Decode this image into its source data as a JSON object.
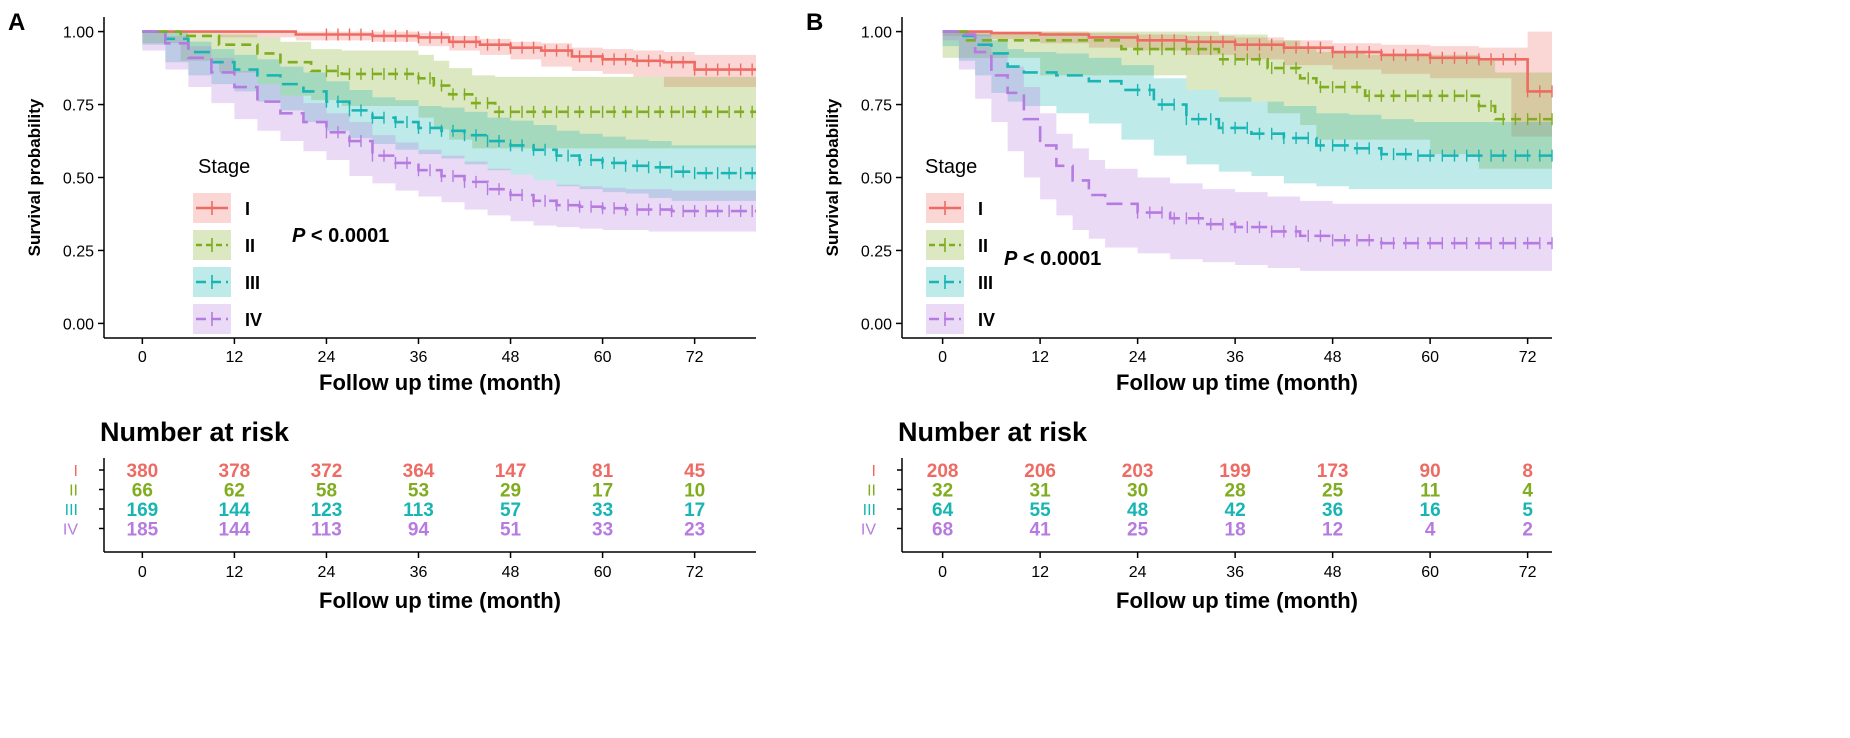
{
  "legend_title": "Stage",
  "colors": {
    "I": "#ee6b63",
    "II": "#7fad1f",
    "III": "#18b5b3",
    "IV": "#b67be0"
  },
  "chart_data": [
    {
      "panel_label": "A",
      "type": "line",
      "subtype": "kaplan-meier",
      "xlabel": "Follow up time (month)",
      "ylabel": "Survival probability",
      "xlim": [
        -5,
        80
      ],
      "ylim": [
        -0.05,
        1.05
      ],
      "xticks": [
        0,
        12,
        24,
        36,
        48,
        60,
        72
      ],
      "yticks": [
        "0.00",
        "0.25",
        "0.50",
        "0.75",
        "1.00"
      ],
      "pvalue_label": "P",
      "pvalue_text": " < 0.0001",
      "series": [
        {
          "name": "I",
          "style": "solid",
          "x": [
            0,
            10,
            20,
            30,
            36,
            40,
            44,
            48,
            52,
            56,
            60,
            64,
            68,
            72,
            76,
            80
          ],
          "y": [
            1.0,
            1.0,
            0.99,
            0.985,
            0.98,
            0.965,
            0.955,
            0.945,
            0.935,
            0.915,
            0.905,
            0.9,
            0.895,
            0.87,
            0.87,
            0.87
          ],
          "lower": [
            1.0,
            1.0,
            0.98,
            0.97,
            0.965,
            0.95,
            0.935,
            0.92,
            0.905,
            0.88,
            0.865,
            0.855,
            0.845,
            0.81,
            0.81,
            0.81
          ],
          "upper": [
            1.0,
            1.0,
            1.0,
            1.0,
            0.995,
            0.985,
            0.975,
            0.965,
            0.96,
            0.945,
            0.94,
            0.935,
            0.93,
            0.92,
            0.92,
            0.92
          ]
        },
        {
          "name": "II",
          "style": "dashed",
          "x": [
            0,
            5,
            10,
            15,
            18,
            22,
            26,
            36,
            38,
            40,
            43,
            46,
            80
          ],
          "y": [
            1.0,
            0.985,
            0.955,
            0.925,
            0.895,
            0.865,
            0.855,
            0.84,
            0.815,
            0.785,
            0.755,
            0.725,
            0.725
          ],
          "lower": [
            1.0,
            0.96,
            0.9,
            0.86,
            0.82,
            0.78,
            0.765,
            0.745,
            0.705,
            0.665,
            0.63,
            0.6,
            0.6
          ],
          "upper": [
            1.0,
            1.0,
            0.99,
            0.98,
            0.965,
            0.94,
            0.935,
            0.92,
            0.9,
            0.875,
            0.85,
            0.845,
            0.845
          ]
        },
        {
          "name": "III",
          "style": "longdash",
          "x": [
            0,
            3,
            6,
            9,
            12,
            15,
            18,
            21,
            24,
            27,
            30,
            33,
            36,
            39,
            42,
            45,
            48,
            51,
            54,
            57,
            60,
            63,
            66,
            69,
            72,
            76,
            80
          ],
          "y": [
            1.0,
            0.975,
            0.93,
            0.895,
            0.87,
            0.85,
            0.82,
            0.795,
            0.76,
            0.73,
            0.705,
            0.69,
            0.67,
            0.66,
            0.645,
            0.625,
            0.61,
            0.595,
            0.575,
            0.56,
            0.55,
            0.54,
            0.535,
            0.52,
            0.515,
            0.515,
            0.515
          ],
          "lower": [
            1.0,
            0.955,
            0.895,
            0.85,
            0.82,
            0.795,
            0.76,
            0.73,
            0.69,
            0.66,
            0.635,
            0.615,
            0.595,
            0.58,
            0.565,
            0.545,
            0.525,
            0.51,
            0.49,
            0.47,
            0.46,
            0.45,
            0.445,
            0.43,
            0.42,
            0.42,
            0.42
          ],
          "upper": [
            1.0,
            0.995,
            0.965,
            0.94,
            0.92,
            0.905,
            0.88,
            0.86,
            0.83,
            0.8,
            0.775,
            0.765,
            0.745,
            0.74,
            0.725,
            0.705,
            0.695,
            0.68,
            0.66,
            0.65,
            0.64,
            0.63,
            0.625,
            0.61,
            0.61,
            0.61,
            0.61
          ]
        },
        {
          "name": "IV",
          "style": "longdash",
          "x": [
            0,
            3,
            6,
            9,
            12,
            15,
            18,
            21,
            24,
            27,
            30,
            33,
            36,
            39,
            42,
            45,
            48,
            51,
            54,
            57,
            60,
            63,
            66,
            69,
            72,
            76,
            80
          ],
          "y": [
            1.0,
            0.96,
            0.91,
            0.86,
            0.81,
            0.76,
            0.72,
            0.69,
            0.655,
            0.625,
            0.575,
            0.55,
            0.525,
            0.505,
            0.485,
            0.46,
            0.44,
            0.42,
            0.405,
            0.4,
            0.395,
            0.39,
            0.39,
            0.385,
            0.385,
            0.385,
            0.385
          ],
          "lower": [
            1.0,
            0.935,
            0.87,
            0.81,
            0.755,
            0.7,
            0.66,
            0.625,
            0.59,
            0.56,
            0.505,
            0.48,
            0.455,
            0.435,
            0.415,
            0.39,
            0.37,
            0.35,
            0.335,
            0.33,
            0.325,
            0.32,
            0.32,
            0.315,
            0.315,
            0.315,
            0.315
          ],
          "upper": [
            1.0,
            0.985,
            0.95,
            0.91,
            0.865,
            0.82,
            0.78,
            0.755,
            0.72,
            0.69,
            0.645,
            0.62,
            0.595,
            0.575,
            0.555,
            0.53,
            0.51,
            0.49,
            0.475,
            0.47,
            0.465,
            0.46,
            0.46,
            0.455,
            0.455,
            0.455,
            0.455
          ]
        }
      ],
      "risk_table": {
        "title": "Number at risk",
        "xlabel": "Follow up time (month)",
        "times": [
          0,
          12,
          24,
          36,
          48,
          60,
          72
        ],
        "rows": [
          {
            "name": "I",
            "values": [
              380,
              378,
              372,
              364,
              147,
              81,
              45
            ]
          },
          {
            "name": "II",
            "values": [
              66,
              62,
              58,
              53,
              29,
              17,
              10
            ]
          },
          {
            "name": "III",
            "values": [
              169,
              144,
              123,
              113,
              57,
              33,
              17
            ]
          },
          {
            "name": "IV",
            "values": [
              185,
              144,
              113,
              94,
              51,
              33,
              23
            ]
          }
        ]
      }
    },
    {
      "panel_label": "B",
      "type": "line",
      "subtype": "kaplan-meier",
      "xlabel": "Follow up time (month)",
      "ylabel": "Survival probability",
      "xlim": [
        -5,
        75
      ],
      "ylim": [
        -0.05,
        1.05
      ],
      "xticks": [
        0,
        12,
        24,
        36,
        48,
        60,
        72
      ],
      "yticks": [
        "0.00",
        "0.25",
        "0.50",
        "0.75",
        "1.00"
      ],
      "pvalue_label": "P",
      "pvalue_text": " < 0.0001",
      "series": [
        {
          "name": "I",
          "style": "solid",
          "x": [
            0,
            6,
            12,
            18,
            24,
            30,
            36,
            42,
            48,
            54,
            60,
            66,
            70,
            72,
            75
          ],
          "y": [
            1.0,
            0.995,
            0.99,
            0.98,
            0.97,
            0.965,
            0.955,
            0.945,
            0.93,
            0.92,
            0.91,
            0.905,
            0.905,
            0.795,
            0.795
          ],
          "lower": [
            1.0,
            0.985,
            0.975,
            0.96,
            0.945,
            0.935,
            0.92,
            0.905,
            0.885,
            0.87,
            0.855,
            0.84,
            0.84,
            0.64,
            0.64
          ],
          "upper": [
            1.0,
            1.0,
            1.0,
            0.995,
            0.99,
            0.985,
            0.98,
            0.97,
            0.96,
            0.955,
            0.95,
            0.945,
            0.945,
            1.0,
            1.0
          ]
        },
        {
          "name": "II",
          "style": "dashed",
          "x": [
            0,
            3,
            12,
            22,
            30,
            34,
            40,
            44,
            46,
            52,
            60,
            66,
            68,
            75
          ],
          "y": [
            1.0,
            0.97,
            0.97,
            0.94,
            0.94,
            0.905,
            0.875,
            0.84,
            0.81,
            0.78,
            0.78,
            0.745,
            0.7,
            0.7
          ],
          "lower": [
            1.0,
            0.91,
            0.91,
            0.85,
            0.85,
            0.8,
            0.76,
            0.72,
            0.68,
            0.63,
            0.63,
            0.58,
            0.53,
            0.53
          ],
          "upper": [
            1.0,
            1.0,
            1.0,
            1.0,
            1.0,
            0.99,
            0.97,
            0.95,
            0.93,
            0.92,
            0.92,
            0.9,
            0.86,
            0.86
          ]
        },
        {
          "name": "III",
          "style": "longdash",
          "x": [
            0,
            2,
            4,
            6,
            8,
            10,
            14,
            18,
            22,
            26,
            30,
            34,
            38,
            42,
            46,
            50,
            54,
            58,
            75
          ],
          "y": [
            1.0,
            0.985,
            0.955,
            0.925,
            0.88,
            0.86,
            0.85,
            0.83,
            0.8,
            0.75,
            0.7,
            0.67,
            0.65,
            0.635,
            0.61,
            0.6,
            0.58,
            0.575,
            0.575
          ],
          "lower": [
            1.0,
            0.95,
            0.9,
            0.85,
            0.79,
            0.76,
            0.745,
            0.72,
            0.685,
            0.63,
            0.575,
            0.545,
            0.52,
            0.505,
            0.48,
            0.47,
            0.46,
            0.46,
            0.46
          ],
          "upper": [
            1.0,
            1.0,
            0.99,
            0.97,
            0.94,
            0.93,
            0.925,
            0.91,
            0.885,
            0.84,
            0.8,
            0.775,
            0.76,
            0.745,
            0.72,
            0.715,
            0.7,
            0.69,
            0.69
          ]
        },
        {
          "name": "IV",
          "style": "longdash",
          "x": [
            0,
            2,
            4,
            6,
            8,
            10,
            12,
            14,
            16,
            18,
            20,
            24,
            28,
            32,
            36,
            40,
            44,
            48,
            54,
            60,
            66,
            75
          ],
          "y": [
            1.0,
            0.99,
            0.93,
            0.85,
            0.79,
            0.7,
            0.61,
            0.54,
            0.49,
            0.44,
            0.41,
            0.38,
            0.36,
            0.34,
            0.33,
            0.315,
            0.3,
            0.285,
            0.275,
            0.275,
            0.275,
            0.275
          ],
          "lower": [
            1.0,
            0.97,
            0.87,
            0.77,
            0.69,
            0.59,
            0.5,
            0.425,
            0.37,
            0.32,
            0.29,
            0.26,
            0.24,
            0.22,
            0.21,
            0.2,
            0.19,
            0.18,
            0.18,
            0.18,
            0.18,
            0.18
          ],
          "upper": [
            1.0,
            1.0,
            0.99,
            0.93,
            0.88,
            0.81,
            0.72,
            0.65,
            0.6,
            0.56,
            0.53,
            0.5,
            0.48,
            0.46,
            0.45,
            0.435,
            0.42,
            0.41,
            0.41,
            0.41,
            0.41,
            0.41
          ]
        }
      ],
      "risk_table": {
        "title": "Number at risk",
        "xlabel": "Follow up time (month)",
        "times": [
          0,
          12,
          24,
          36,
          48,
          60,
          72
        ],
        "rows": [
          {
            "name": "I",
            "values": [
              208,
              206,
              203,
              199,
              173,
              90,
              8
            ]
          },
          {
            "name": "II",
            "values": [
              32,
              31,
              30,
              28,
              25,
              11,
              4
            ]
          },
          {
            "name": "III",
            "values": [
              64,
              55,
              48,
              42,
              36,
              16,
              5
            ]
          },
          {
            "name": "IV",
            "values": [
              68,
              41,
              25,
              18,
              12,
              4,
              2
            ]
          }
        ]
      }
    }
  ]
}
